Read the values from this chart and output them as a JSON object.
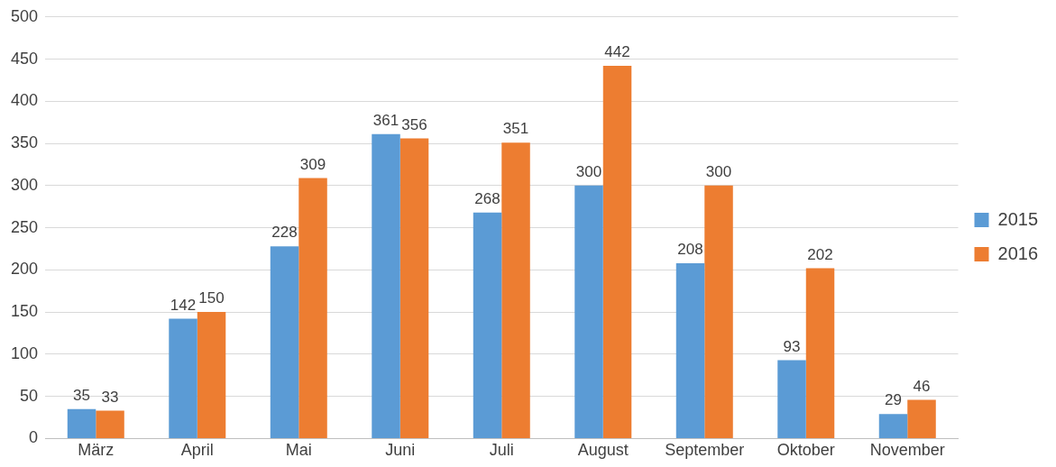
{
  "chart_data": {
    "type": "bar",
    "categories": [
      "März",
      "April",
      "Mai",
      "Juni",
      "Juli",
      "August",
      "September",
      "Oktober",
      "November"
    ],
    "series": [
      {
        "name": "2015",
        "color": "#5b9bd5",
        "values": [
          35,
          142,
          228,
          361,
          268,
          300,
          208,
          93,
          29
        ]
      },
      {
        "name": "2016",
        "color": "#ed7d31",
        "values": [
          33,
          150,
          309,
          356,
          351,
          442,
          300,
          202,
          46
        ]
      }
    ],
    "ylim": [
      0,
      500
    ],
    "yticks": [
      0,
      50,
      100,
      150,
      200,
      250,
      300,
      350,
      400,
      450,
      500
    ],
    "grid": "y",
    "legend": "right",
    "data_labels": true
  }
}
